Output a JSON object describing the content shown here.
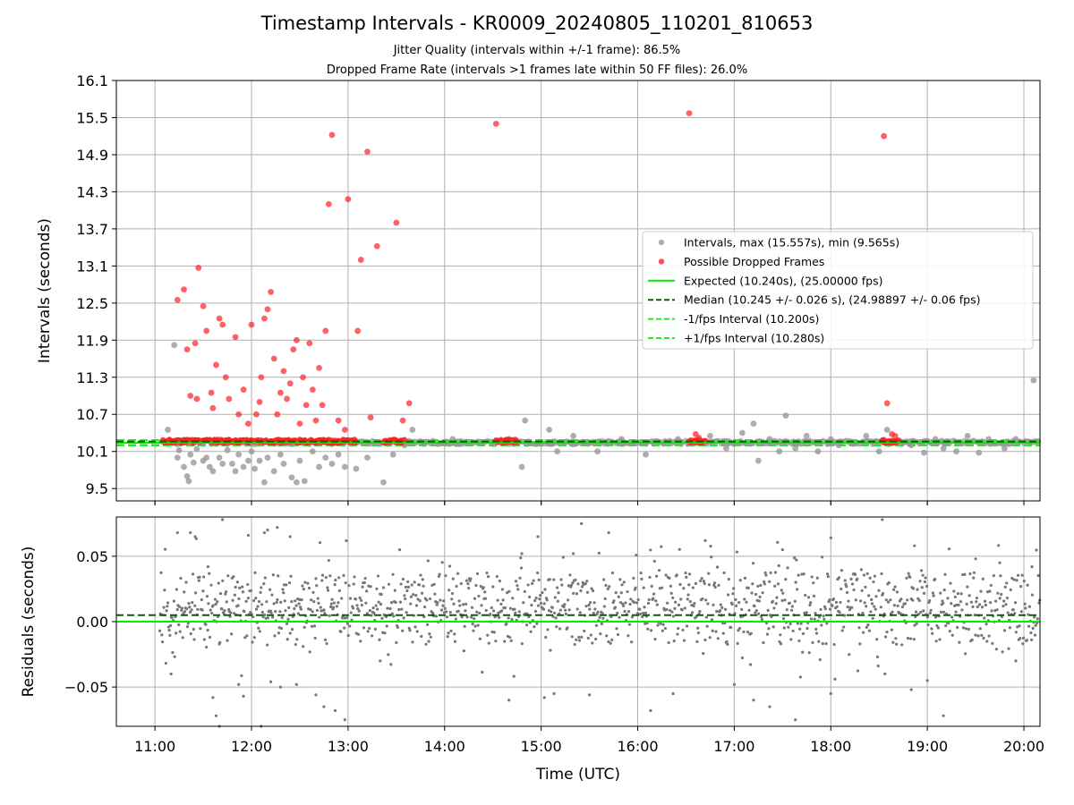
{
  "title": "Timestamp Intervals - KR0009_20240805_110201_810653",
  "subtitle1": "Jitter Quality (intervals within +/-1 frame): 86.5%",
  "subtitle2": "Dropped Frame Rate (intervals >1 frames late within 50 FF files): 26.0%",
  "colors": {
    "intervals": "#999999",
    "dropped": "#ff2020",
    "expected": "#00ee00",
    "median": "#006400",
    "fps_band": "#22ee22",
    "residuals": "#777777",
    "grid": "#b0b0b0"
  },
  "chart_data": [
    {
      "type": "scatter",
      "xlabel": "",
      "ylabel": "Intervals (seconds)",
      "xlim": [
        "10:36",
        "20:10"
      ],
      "ylim": [
        9.3,
        16.1
      ],
      "x_ticks": [
        "11:00",
        "12:00",
        "13:00",
        "14:00",
        "15:00",
        "16:00",
        "17:00",
        "18:00",
        "19:00",
        "20:00"
      ],
      "y_ticks": [
        9.5,
        10.1,
        10.7,
        11.3,
        11.9,
        12.5,
        13.1,
        13.7,
        14.3,
        14.9,
        15.5,
        16.1
      ],
      "grid": true,
      "legend_position": "center-right",
      "legend": [
        "Intervals, max (15.557s), min (9.565s)",
        "Possible Dropped Frames",
        "Expected (10.240s), (25.00000 fps)",
        "Median (10.245 +/- 0.026 s), (24.98897 +/- 0.06 fps)",
        "-1/fps Interval (10.200s)",
        "+1/fps Interval (10.280s)"
      ],
      "lines": {
        "expected": 10.24,
        "median": 10.245,
        "minus_1_fps": 10.2,
        "plus_1_fps": 10.28
      },
      "series": [
        {
          "name": "Intervals, max (15.557s), min (9.565s)",
          "points": [
            [
              "11:08",
              10.45
            ],
            [
              "11:12",
              11.82
            ],
            [
              "11:14",
              10.0
            ],
            [
              "11:15",
              10.12
            ],
            [
              "11:18",
              9.85
            ],
            [
              "11:20",
              9.7
            ],
            [
              "11:21",
              9.62
            ],
            [
              "11:22",
              10.05
            ],
            [
              "11:24",
              9.92
            ],
            [
              "11:26",
              10.14
            ],
            [
              "11:30",
              9.95
            ],
            [
              "11:32",
              10.0
            ],
            [
              "11:34",
              9.85
            ],
            [
              "11:36",
              9.78
            ],
            [
              "11:40",
              10.0
            ],
            [
              "11:42",
              9.9
            ],
            [
              "11:45",
              10.12
            ],
            [
              "11:48",
              9.9
            ],
            [
              "11:50",
              9.78
            ],
            [
              "11:52",
              10.05
            ],
            [
              "11:55",
              9.85
            ],
            [
              "11:58",
              9.95
            ],
            [
              "12:00",
              10.1
            ],
            [
              "12:02",
              9.82
            ],
            [
              "12:05",
              9.95
            ],
            [
              "12:08",
              9.6
            ],
            [
              "12:10",
              10.0
            ],
            [
              "12:14",
              9.78
            ],
            [
              "12:18",
              10.05
            ],
            [
              "12:20",
              9.9
            ],
            [
              "12:25",
              9.68
            ],
            [
              "12:28",
              9.6
            ],
            [
              "12:30",
              9.95
            ],
            [
              "12:33",
              9.62
            ],
            [
              "12:38",
              10.1
            ],
            [
              "12:42",
              9.85
            ],
            [
              "12:46",
              10.0
            ],
            [
              "12:50",
              9.9
            ],
            [
              "12:54",
              10.05
            ],
            [
              "12:58",
              9.85
            ],
            [
              "13:05",
              9.82
            ],
            [
              "13:12",
              10.0
            ],
            [
              "13:22",
              9.6
            ],
            [
              "13:28",
              10.05
            ],
            [
              "13:35",
              10.2
            ],
            [
              "13:40",
              10.45
            ],
            [
              "14:05",
              10.3
            ],
            [
              "14:40",
              10.3
            ],
            [
              "14:48",
              9.85
            ],
            [
              "14:50",
              10.6
            ],
            [
              "15:05",
              10.45
            ],
            [
              "15:10",
              10.1
            ],
            [
              "15:20",
              10.35
            ],
            [
              "15:35",
              10.1
            ],
            [
              "15:50",
              10.3
            ],
            [
              "16:05",
              10.05
            ],
            [
              "16:25",
              10.3
            ],
            [
              "16:45",
              10.35
            ],
            [
              "16:55",
              10.15
            ],
            [
              "17:05",
              10.4
            ],
            [
              "17:12",
              10.55
            ],
            [
              "17:15",
              9.95
            ],
            [
              "17:22",
              10.3
            ],
            [
              "17:28",
              10.1
            ],
            [
              "17:32",
              10.68
            ],
            [
              "17:38",
              10.15
            ],
            [
              "17:45",
              10.35
            ],
            [
              "17:52",
              10.1
            ],
            [
              "18:00",
              10.3
            ],
            [
              "18:05",
              10.2
            ],
            [
              "18:22",
              10.35
            ],
            [
              "18:30",
              10.1
            ],
            [
              "18:35",
              10.45
            ],
            [
              "18:50",
              10.2
            ],
            [
              "18:58",
              10.08
            ],
            [
              "19:05",
              10.3
            ],
            [
              "19:10",
              10.15
            ],
            [
              "19:18",
              10.1
            ],
            [
              "19:25",
              10.35
            ],
            [
              "19:32",
              10.08
            ],
            [
              "19:38",
              10.3
            ],
            [
              "19:48",
              10.15
            ],
            [
              "19:55",
              10.3
            ],
            [
              "20:06",
              11.25
            ]
          ]
        },
        {
          "name": "Possible Dropped Frames",
          "points": [
            [
              "11:14",
              12.55
            ],
            [
              "11:18",
              12.72
            ],
            [
              "11:20",
              11.75
            ],
            [
              "11:22",
              11.0
            ],
            [
              "11:25",
              11.85
            ],
            [
              "11:26",
              10.95
            ],
            [
              "11:27",
              13.07
            ],
            [
              "11:30",
              12.45
            ],
            [
              "11:32",
              12.05
            ],
            [
              "11:35",
              11.05
            ],
            [
              "11:36",
              10.8
            ],
            [
              "11:38",
              11.5
            ],
            [
              "11:40",
              12.25
            ],
            [
              "11:42",
              12.15
            ],
            [
              "11:44",
              11.3
            ],
            [
              "11:46",
              10.95
            ],
            [
              "11:50",
              11.95
            ],
            [
              "11:52",
              10.7
            ],
            [
              "11:55",
              11.1
            ],
            [
              "11:58",
              10.55
            ],
            [
              "12:00",
              12.15
            ],
            [
              "12:03",
              10.7
            ],
            [
              "12:05",
              10.9
            ],
            [
              "12:06",
              11.3
            ],
            [
              "12:08",
              12.25
            ],
            [
              "12:10",
              12.4
            ],
            [
              "12:12",
              12.68
            ],
            [
              "12:14",
              11.6
            ],
            [
              "12:16",
              10.7
            ],
            [
              "12:18",
              11.05
            ],
            [
              "12:20",
              11.4
            ],
            [
              "12:22",
              10.95
            ],
            [
              "12:24",
              11.2
            ],
            [
              "12:26",
              11.75
            ],
            [
              "12:28",
              11.9
            ],
            [
              "12:30",
              10.55
            ],
            [
              "12:32",
              11.3
            ],
            [
              "12:34",
              10.85
            ],
            [
              "12:36",
              11.85
            ],
            [
              "12:38",
              11.1
            ],
            [
              "12:40",
              10.6
            ],
            [
              "12:42",
              11.45
            ],
            [
              "12:44",
              10.85
            ],
            [
              "12:46",
              12.05
            ],
            [
              "12:48",
              14.1
            ],
            [
              "12:50",
              15.22
            ],
            [
              "12:54",
              10.6
            ],
            [
              "12:58",
              10.45
            ],
            [
              "13:00",
              14.18
            ],
            [
              "13:06",
              12.05
            ],
            [
              "13:08",
              13.2
            ],
            [
              "13:12",
              14.95
            ],
            [
              "13:14",
              10.65
            ],
            [
              "13:18",
              13.42
            ],
            [
              "13:30",
              13.8
            ],
            [
              "13:34",
              10.6
            ],
            [
              "13:38",
              10.88
            ],
            [
              "14:32",
              15.4
            ],
            [
              "16:32",
              15.57
            ],
            [
              "18:33",
              15.2
            ],
            [
              "18:35",
              10.88
            ],
            [
              "18:38",
              10.38
            ],
            [
              "18:40",
              10.35
            ],
            [
              "16:36",
              10.38
            ],
            [
              "16:38",
              10.32
            ]
          ]
        }
      ]
    },
    {
      "type": "scatter",
      "xlabel": "Time (UTC)",
      "ylabel": "Residuals (seconds)",
      "xlim": [
        "10:36",
        "20:10"
      ],
      "ylim": [
        -0.08,
        0.08
      ],
      "x_ticks": [
        "11:00",
        "12:00",
        "13:00",
        "14:00",
        "15:00",
        "16:00",
        "17:00",
        "18:00",
        "19:00",
        "20:00"
      ],
      "y_ticks": [
        "0.05",
        "0.00",
        "−0.05"
      ],
      "grid": true,
      "lines": {
        "expected": 0.0,
        "median": 0.005
      },
      "series": [
        {
          "name": "Residuals",
          "points": [
            [
              "11:10",
              -0.04
            ],
            [
              "11:14",
              0.068
            ],
            [
              "11:22",
              0.068
            ],
            [
              "11:25",
              0.065
            ],
            [
              "11:33",
              0.042
            ],
            [
              "11:36",
              -0.058
            ],
            [
              "11:38",
              -0.072
            ],
            [
              "11:40",
              -0.08
            ],
            [
              "11:42",
              0.078
            ],
            [
              "11:52",
              -0.048
            ],
            [
              "11:55",
              -0.057
            ],
            [
              "11:58",
              0.066
            ],
            [
              "12:06",
              -0.08
            ],
            [
              "12:08",
              0.068
            ],
            [
              "12:10",
              0.07
            ],
            [
              "12:12",
              -0.046
            ],
            [
              "12:16",
              0.072
            ],
            [
              "12:18",
              -0.05
            ],
            [
              "12:24",
              0.065
            ],
            [
              "12:28",
              -0.048
            ],
            [
              "12:40",
              -0.056
            ],
            [
              "12:45",
              -0.065
            ],
            [
              "12:52",
              -0.068
            ],
            [
              "12:58",
              -0.075
            ],
            [
              "13:20",
              -0.03
            ],
            [
              "14:40",
              -0.06
            ],
            [
              "14:48",
              0.052
            ],
            [
              "14:58",
              0.065
            ],
            [
              "15:02",
              -0.058
            ],
            [
              "15:08",
              -0.055
            ],
            [
              "15:20",
              0.052
            ],
            [
              "15:25",
              0.075
            ],
            [
              "15:30",
              -0.056
            ],
            [
              "15:42",
              0.068
            ],
            [
              "16:08",
              -0.068
            ],
            [
              "16:22",
              -0.055
            ],
            [
              "16:42",
              0.062
            ],
            [
              "17:00",
              -0.048
            ],
            [
              "17:12",
              -0.06
            ],
            [
              "17:22",
              -0.065
            ],
            [
              "17:30",
              0.055
            ],
            [
              "17:38",
              -0.075
            ],
            [
              "18:00",
              -0.055
            ],
            [
              "18:32",
              0.078
            ],
            [
              "18:50",
              -0.052
            ],
            [
              "18:52",
              0.058
            ],
            [
              "19:00",
              -0.045
            ],
            [
              "19:10",
              -0.072
            ],
            [
              "19:30",
              0.048
            ],
            [
              "19:45",
              0.045
            ],
            [
              "19:55",
              -0.03
            ],
            [
              "20:05",
              0.042
            ]
          ]
        }
      ]
    }
  ]
}
